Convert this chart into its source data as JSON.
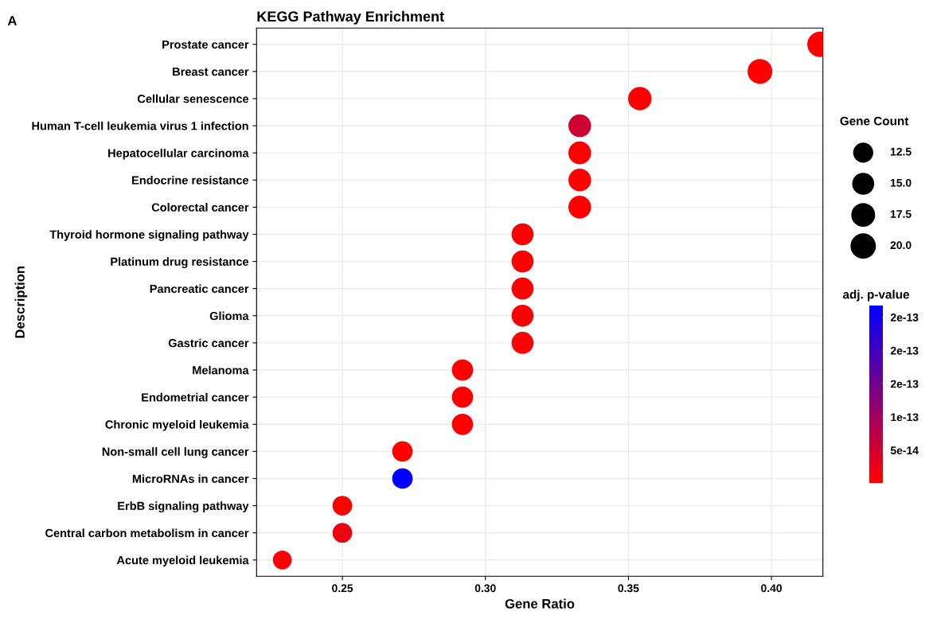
{
  "chart_data": {
    "type": "bubble",
    "title": "KEGG Pathway Enrichment",
    "xlabel": "Gene Ratio",
    "ylabel": "Description",
    "legend_title": "Gene Count",
    "clabel": "adj. p-value",
    "annotations": [
      "A"
    ],
    "categories": [
      "Prostate cancer",
      "Breast cancer",
      "Cellular senescence",
      "Human T-cell leukemia virus 1 infection",
      "Hepatocellular carcinoma",
      "Endocrine resistance",
      "Colorectal cancer",
      "Thyroid hormone signaling pathway",
      "Platinum drug resistance",
      "Pancreatic cancer",
      "Glioma",
      "Gastric cancer",
      "Melanoma",
      "Endometrial cancer",
      "Chronic myeloid leukemia",
      "Non-small cell lung cancer",
      "MicroRNAs in cancer",
      "ErbB signaling pathway",
      "Central carbon metabolism in cancer",
      "Acute myeloid leukemia"
    ],
    "orientation": "horizontal",
    "values": [
      0.417,
      0.396,
      0.354,
      0.333,
      0.333,
      0.333,
      0.333,
      0.313,
      0.313,
      0.313,
      0.313,
      0.313,
      0.292,
      0.292,
      0.292,
      0.271,
      0.271,
      0.25,
      0.25,
      0.229
    ],
    "sizes": [
      20,
      19,
      17,
      16,
      16,
      16,
      16,
      15,
      15,
      15,
      15,
      15,
      14,
      14,
      14,
      13,
      13,
      12,
      12,
      11
    ],
    "cvalues": [
      1e-15,
      1e-15,
      1e-15,
      5.5e-14,
      1e-15,
      1e-15,
      1e-15,
      1e-15,
      1e-15,
      1e-15,
      1e-15,
      1e-15,
      1e-15,
      1e-15,
      1e-15,
      1e-15,
      2.68e-13,
      1e-15,
      2e-14,
      1e-15
    ],
    "size_legend": [
      12.5,
      {
        "value": 15,
        "label": "15.0"
      },
      17.5,
      {
        "value": 20,
        "label": "20.0"
      }
    ],
    "xlim": [
      0.22,
      0.418
    ],
    "xticks": [
      {
        "value": 0.25,
        "label": "0.25"
      },
      {
        "value": 0.3,
        "label": "0.30"
      },
      {
        "value": 0.35,
        "label": "0.35"
      },
      {
        "value": 0.4,
        "label": "0.40"
      }
    ],
    "clim": [
      1e-15,
      2.68e-13
    ],
    "cticks": [
      {
        "value": 5e-14,
        "label": "5e-14"
      },
      {
        "value": 1e-13,
        "label": "1e-13"
      },
      {
        "value": 1.5e-13,
        "label": "2e-13"
      },
      {
        "value": 2e-13,
        "label": "2e-13"
      },
      {
        "value": 2.5e-13,
        "label": "2e-13"
      }
    ],
    "grid": true
  }
}
